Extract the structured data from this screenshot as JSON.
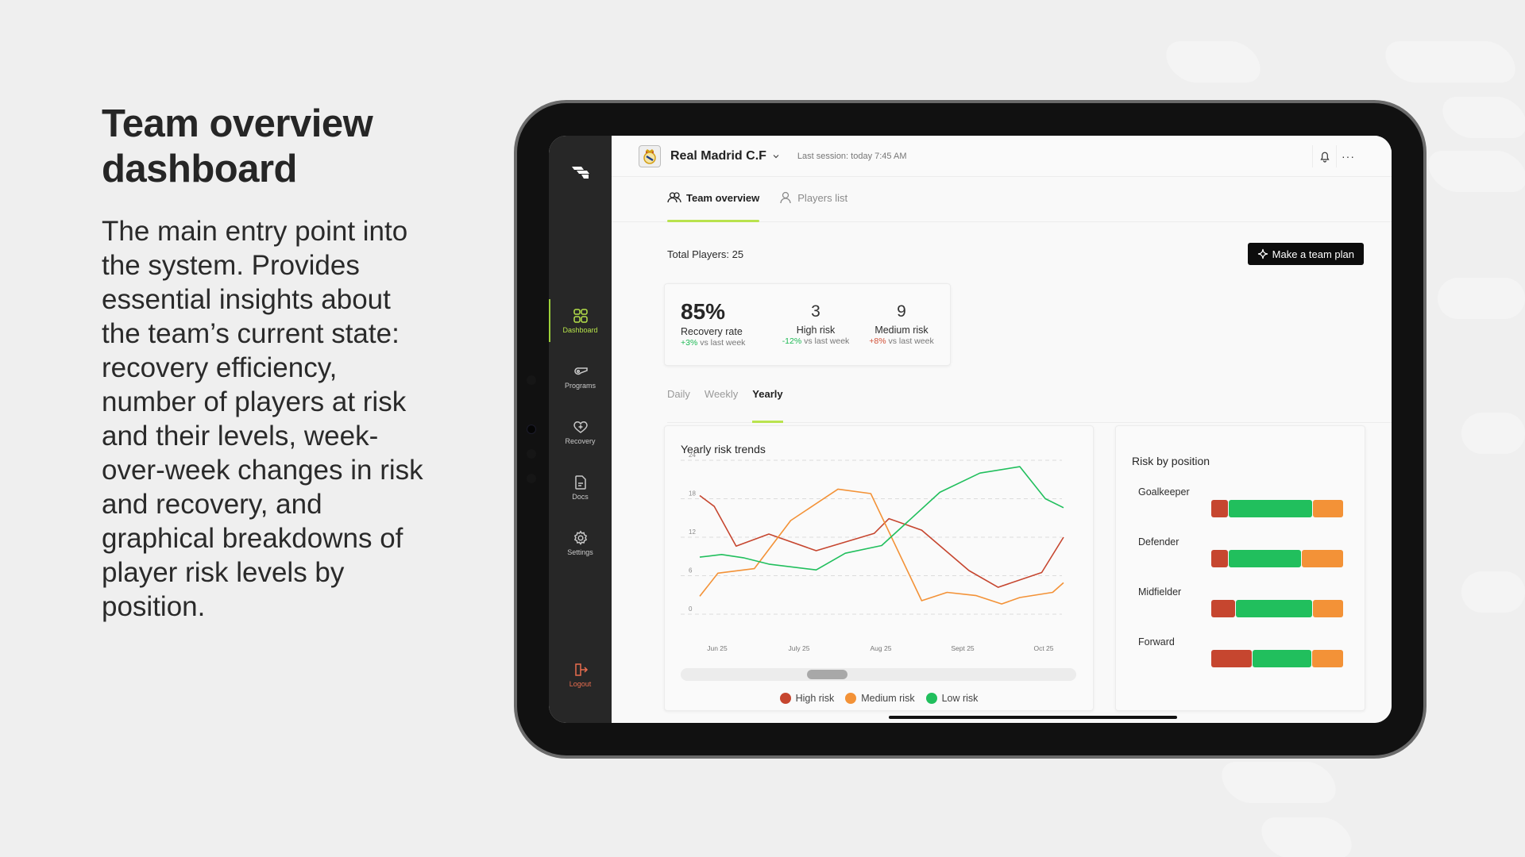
{
  "slide": {
    "heading": "Team overview dashboard",
    "description": "The main entry point into the system. Provides essential insights about the team’s current state: recovery efficiency, number of players at risk and their levels, week-over-week changes in risk and recovery, and graphical breakdowns of player risk levels by position."
  },
  "sidebar": {
    "items": [
      {
        "label": "Dashboard",
        "icon": "dashboard-grid-icon",
        "active": true
      },
      {
        "label": "Programs",
        "icon": "whistle-icon",
        "active": false
      },
      {
        "label": "Recovery",
        "icon": "heart-plus-icon",
        "active": false
      },
      {
        "label": "Docs",
        "icon": "document-icon",
        "active": false
      },
      {
        "label": "Settings",
        "icon": "gear-icon",
        "active": false
      }
    ],
    "logout": {
      "label": "Logout",
      "icon": "logout-icon"
    }
  },
  "header": {
    "club_name": "Real Madrid C.F",
    "last_session": "Last session: today 7:45 AM",
    "more": "···"
  },
  "tabs": [
    {
      "label": "Team overview",
      "icon": "users-icon",
      "active": true
    },
    {
      "label": "Players list",
      "icon": "user-icon",
      "active": false
    }
  ],
  "overview": {
    "total_players": "Total Players: 25",
    "plan_button": "Make a team plan"
  },
  "kpis": [
    {
      "value": "85%",
      "label": "Recovery rate",
      "delta": "+3%",
      "delta_suffix": " vs last week",
      "delta_color": "#1db954"
    },
    {
      "value": "3",
      "label": "High risk",
      "delta": "-12%",
      "delta_suffix": " vs last week",
      "delta_color": "#1db954"
    },
    {
      "value": "9",
      "label": "Medium risk",
      "delta": "+8%",
      "delta_suffix": " vs last week",
      "delta_color": "#d24f35"
    }
  ],
  "period_tabs": [
    {
      "label": "Daily",
      "active": false
    },
    {
      "label": "Weekly",
      "active": false
    },
    {
      "label": "Yearly",
      "active": true
    }
  ],
  "colors": {
    "high": "#c6462f",
    "medium": "#f39237",
    "low": "#21bf5d",
    "accent": "#b9e34e"
  },
  "chart_data": [
    {
      "type": "line",
      "title": "Yearly risk trends",
      "xlabel": "",
      "ylabel": "",
      "ylim": [
        0,
        24
      ],
      "yticks": [
        0,
        6,
        12,
        18,
        24
      ],
      "xticks": [
        "Jun 25",
        "July 25",
        "Aug 25",
        "Sept 25",
        "Oct 25"
      ],
      "grid": true,
      "legend_position": "bottom",
      "series": [
        {
          "name": "High risk",
          "color": "#c6462f",
          "points": [
            [
              0.0,
              18.5
            ],
            [
              0.04,
              16.8
            ],
            [
              0.1,
              10.6
            ],
            [
              0.19,
              12.5
            ],
            [
              0.32,
              9.9
            ],
            [
              0.48,
              12.6
            ],
            [
              0.52,
              14.9
            ],
            [
              0.61,
              13.1
            ],
            [
              0.74,
              6.8
            ],
            [
              0.82,
              4.2
            ],
            [
              0.94,
              6.5
            ],
            [
              1.0,
              12.0
            ]
          ]
        },
        {
          "name": "Medium risk",
          "color": "#f39237",
          "points": [
            [
              0.0,
              2.8
            ],
            [
              0.05,
              6.4
            ],
            [
              0.15,
              7.1
            ],
            [
              0.25,
              14.6
            ],
            [
              0.38,
              19.5
            ],
            [
              0.47,
              18.8
            ],
            [
              0.61,
              2.1
            ],
            [
              0.68,
              3.4
            ],
            [
              0.76,
              2.9
            ],
            [
              0.83,
              1.6
            ],
            [
              0.88,
              2.6
            ],
            [
              0.97,
              3.4
            ],
            [
              1.0,
              4.9
            ]
          ]
        },
        {
          "name": "Low risk",
          "color": "#21bf5d",
          "points": [
            [
              0.0,
              8.9
            ],
            [
              0.06,
              9.3
            ],
            [
              0.12,
              8.8
            ],
            [
              0.19,
              7.8
            ],
            [
              0.32,
              6.9
            ],
            [
              0.4,
              9.5
            ],
            [
              0.5,
              10.7
            ],
            [
              0.66,
              19.0
            ],
            [
              0.77,
              22.0
            ],
            [
              0.88,
              23.0
            ],
            [
              0.95,
              18.0
            ],
            [
              1.0,
              16.6
            ]
          ]
        }
      ]
    },
    {
      "type": "bar",
      "stacked": true,
      "orientation": "horizontal",
      "title": "Risk by position",
      "categories": [
        "Goalkeeper",
        "Defender",
        "Midfielder",
        "Forward"
      ],
      "series": [
        {
          "name": "High risk",
          "color": "#c6462f",
          "values": [
            13,
            13,
            18,
            31
          ]
        },
        {
          "name": "Low risk",
          "color": "#21bf5d",
          "values": [
            64,
            55,
            59,
            45
          ]
        },
        {
          "name": "Medium risk",
          "color": "#f39237",
          "values": [
            23,
            32,
            23,
            24
          ]
        }
      ],
      "unit": "percent of bar width (estimated)"
    }
  ]
}
